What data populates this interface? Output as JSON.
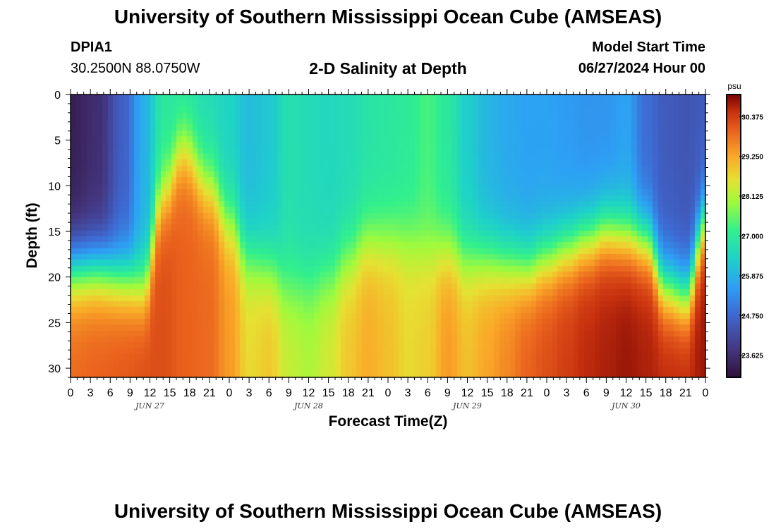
{
  "header": {
    "title": "University of Southern Mississippi Ocean Cube (AMSEAS)",
    "station": "DPIA1",
    "coords": "30.2500N  88.0750W",
    "subtitle": "2-D Salinity at Depth",
    "model_start_label": "Model Start Time",
    "model_start_value": "06/27/2024 Hour 00"
  },
  "footer": {
    "title": "University of Southern Mississippi Ocean Cube (AMSEAS)"
  },
  "chart_data": {
    "type": "heatmap",
    "title": "2-D Salinity at Depth",
    "xlabel": "Forecast Time(Z)",
    "ylabel": "Depth (ft)",
    "xlim": [
      0,
      96
    ],
    "ylim": [
      0,
      31
    ],
    "y_ticks": [
      0,
      5,
      10,
      15,
      20,
      25,
      30
    ],
    "x_tick_labels": [
      "0",
      "3",
      "6",
      "9",
      "12",
      "15",
      "18",
      "21",
      "0",
      "3",
      "6",
      "9",
      "12",
      "15",
      "18",
      "21",
      "0",
      "3",
      "6",
      "9",
      "12",
      "15",
      "18",
      "21",
      "0",
      "3",
      "6",
      "9",
      "12",
      "15",
      "18",
      "21",
      "0"
    ],
    "date_labels": [
      {
        "hour": 12,
        "text": "JUN 27"
      },
      {
        "hour": 36,
        "text": "JUN 28"
      },
      {
        "hour": 60,
        "text": "JUN 29"
      },
      {
        "hour": 84,
        "text": "JUN 30"
      }
    ],
    "colorbar": {
      "units": "psu",
      "min": 23.0,
      "max": 31.0,
      "tick_values": [
        30.375,
        29.25,
        28.125,
        27.0,
        25.875,
        24.75,
        23.625
      ],
      "tick_labels": [
        "30.375",
        "29.250",
        "28.125",
        "27.000",
        "25.875",
        "24.750",
        "23.625"
      ]
    },
    "halocline_depth_ft": {
      "hours": [
        0,
        4,
        8,
        11,
        14,
        17,
        21,
        24,
        27,
        30,
        33,
        36,
        39,
        42,
        45,
        48,
        51,
        54,
        57,
        60,
        63,
        66,
        69,
        72,
        75,
        78,
        81,
        84,
        87,
        90,
        93,
        96
      ],
      "values": [
        19,
        19,
        20,
        21,
        11,
        6,
        10,
        14,
        18,
        19,
        21,
        21,
        20,
        18,
        16,
        16,
        16,
        17,
        17,
        18,
        18,
        18.5,
        19,
        18,
        17,
        16,
        15,
        15.5,
        16,
        21,
        22,
        14
      ]
    },
    "surface_salinity_psu": {
      "hours": [
        0,
        4,
        8,
        11,
        14,
        17,
        21,
        24,
        27,
        30,
        33,
        36,
        39,
        42,
        45,
        48,
        51,
        54,
        57,
        60,
        63,
        66,
        69,
        72,
        75,
        78,
        81,
        84,
        87,
        90,
        93,
        96
      ],
      "values": [
        23.3,
        23.6,
        24.6,
        25.8,
        26.9,
        26.8,
        26.6,
        26.4,
        26.0,
        26.2,
        26.7,
        26.6,
        26.5,
        26.6,
        26.8,
        26.9,
        27.0,
        27.3,
        26.9,
        26.3,
        25.9,
        25.7,
        25.6,
        25.6,
        25.5,
        25.4,
        25.4,
        25.6,
        24.8,
        24.5,
        24.4,
        24.5
      ]
    },
    "bottom_salinity_psu": {
      "hours": [
        0,
        4,
        8,
        11,
        14,
        17,
        21,
        24,
        27,
        30,
        33,
        36,
        39,
        42,
        45,
        48,
        51,
        54,
        57,
        60,
        63,
        66,
        69,
        72,
        75,
        78,
        81,
        84,
        87,
        90,
        93,
        96
      ],
      "values": [
        29.9,
        30.0,
        30.1,
        30.2,
        30.2,
        30.0,
        29.9,
        29.4,
        28.7,
        28.9,
        28.3,
        28.1,
        28.4,
        28.9,
        29.2,
        29.0,
        28.7,
        28.8,
        29.4,
        29.0,
        29.3,
        29.6,
        30.0,
        30.2,
        30.4,
        30.6,
        30.7,
        30.8,
        30.7,
        30.6,
        30.6,
        30.8
      ]
    }
  }
}
